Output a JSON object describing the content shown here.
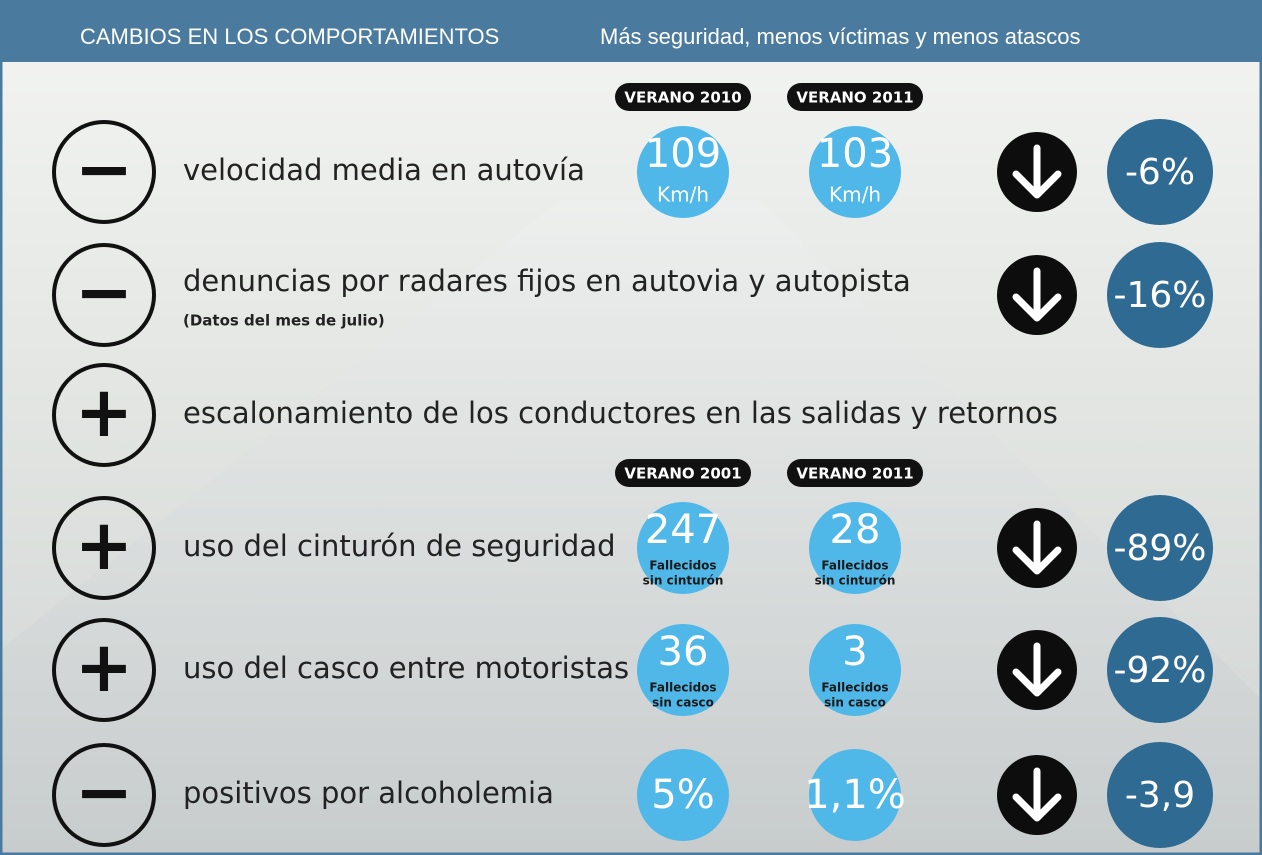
{
  "header": {
    "title": "CAMBIOS EN LOS COMPORTAMIENTOS",
    "subtitle": "Más seguridad, menos víctimas y menos atascos"
  },
  "rows": [
    {
      "sign": "−",
      "label": "velocidad media en autovía",
      "periods": [
        "VERANO 2010",
        "VERANO 2011"
      ],
      "values": [
        {
          "main": "109",
          "sub": [
            "Km/h"
          ]
        },
        {
          "main": "103",
          "sub": [
            "Km/h"
          ]
        }
      ],
      "change": "-6%"
    },
    {
      "sign": "−",
      "label": "denuncias por radares fijos en autovia y autopista",
      "note": "(Datos del mes de julio)",
      "change": "-16%"
    },
    {
      "sign": "+",
      "label": "escalonamiento de los conductores en las salidas y retornos"
    },
    {
      "sign": "+",
      "label": "uso del cinturón de seguridad",
      "periods": [
        "VERANO 2001",
        "VERANO 2011"
      ],
      "values": [
        {
          "main": "247",
          "sub": [
            "Fallecidos",
            "sin cinturón"
          ]
        },
        {
          "main": "28",
          "sub": [
            "Fallecidos",
            "sin cinturón"
          ]
        }
      ],
      "change": "-89%"
    },
    {
      "sign": "+",
      "label": "uso del casco entre motoristas",
      "values": [
        {
          "main": "36",
          "sub": [
            "Fallecidos",
            "sin casco"
          ]
        },
        {
          "main": "3",
          "sub": [
            "Fallecidos",
            "sin casco"
          ]
        }
      ],
      "change": "-92%"
    },
    {
      "sign": "−",
      "label": "positivos por alcoholemia",
      "values": [
        {
          "main": "5%"
        },
        {
          "main": "1,1%"
        }
      ],
      "change": "-3,9"
    }
  ]
}
